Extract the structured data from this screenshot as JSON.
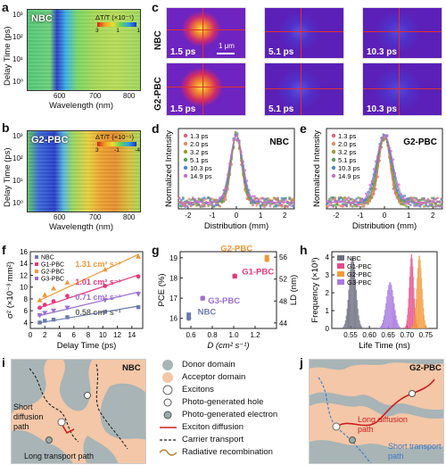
{
  "panels": {
    "a": {
      "letter": "a",
      "sample": "NBC",
      "ylabel": "Delay Time (ps)",
      "xlabel": "Wavelength (nm)",
      "cbar_label": "ΔT/T (×10⁻⁵)",
      "cbar_ticks": [
        "3",
        "1",
        "1"
      ],
      "yticks": [
        "10³",
        "10²",
        "10¹",
        "10⁰"
      ],
      "xticks": [
        "600",
        "700",
        "800"
      ]
    },
    "b": {
      "letter": "b",
      "sample": "G2-PBC",
      "ylabel": "Delay Time (ps)",
      "xlabel": "Wavelength (nm)",
      "cbar_label": "ΔT/T (×10⁻⁵)",
      "cbar_ticks": [
        "3",
        "-1",
        "-4"
      ],
      "yticks": [
        "10³",
        "10²",
        "10¹",
        "10⁰"
      ],
      "xticks": [
        "600",
        "700",
        "800"
      ]
    },
    "c": {
      "letter": "c",
      "rows": [
        "NBC",
        "G2-PBC"
      ],
      "times": [
        "1.5 ps",
        "5.1 ps",
        "10.3 ps"
      ],
      "scale": "1 μm"
    },
    "d": {
      "letter": "d",
      "sample": "NBC"
    },
    "e": {
      "letter": "e",
      "sample": "G2-PBC"
    },
    "f": {
      "letter": "f"
    },
    "g": {
      "letter": "g"
    },
    "h": {
      "letter": "h"
    },
    "i": {
      "letter": "i",
      "sample": "NBC",
      "labels": [
        "Short diffusion path",
        "Long transport path"
      ]
    },
    "j": {
      "letter": "j",
      "sample": "G2-PBC",
      "labels": [
        "Long diffusion path",
        "Short transport path"
      ]
    }
  },
  "legend": {
    "items": [
      "Donor domain",
      "Acceptor domain",
      "Excitons",
      "Photo-generated hole",
      "Photo-generated electron",
      "Exciton diffusion",
      "Carrier transport",
      "Radiative recombination"
    ]
  },
  "chart_data": [
    {
      "panel": "d",
      "type": "scatter",
      "title": "NBC",
      "xlabel": "Distribution (mm)",
      "ylabel": "Normalized Intensity",
      "xlim": [
        -2.4,
        2.4
      ],
      "xticks": [
        "-2",
        "-1",
        "0",
        "1",
        "2"
      ],
      "series": [
        {
          "name": "1.3 ps",
          "color": "#e0607a"
        },
        {
          "name": "2.0 ps",
          "color": "#e09060"
        },
        {
          "name": "3.2 ps",
          "color": "#9a9a30"
        },
        {
          "name": "5.1 ps",
          "color": "#5aa05a"
        },
        {
          "name": "10.3 ps",
          "color": "#4a8ad0"
        },
        {
          "name": "14.9 ps",
          "color": "#c870c8"
        }
      ],
      "gaussian_sigma": [
        0.2,
        0.21,
        0.22,
        0.23,
        0.25,
        0.27
      ]
    },
    {
      "panel": "e",
      "type": "scatter",
      "title": "G2-PBC",
      "xlabel": "Distribution (mm)",
      "ylabel": "Normalized Intensity",
      "xlim": [
        -2.4,
        2.4
      ],
      "xticks": [
        "-2",
        "-1",
        "0",
        "1",
        "2"
      ],
      "series": [
        {
          "name": "1.3 ps",
          "color": "#e0607a"
        },
        {
          "name": "2.0 ps",
          "color": "#e09060"
        },
        {
          "name": "3.2 ps",
          "color": "#9a9a30"
        },
        {
          "name": "5.1 ps",
          "color": "#5aa05a"
        },
        {
          "name": "10.3 ps",
          "color": "#4a8ad0"
        },
        {
          "name": "14.9 ps",
          "color": "#c870c8"
        }
      ],
      "gaussian_sigma": [
        0.22,
        0.24,
        0.26,
        0.28,
        0.31,
        0.34
      ]
    },
    {
      "panel": "f",
      "type": "scatter",
      "xlabel": "Delay Time (ps)",
      "ylabel": "σ² (×10⁻³ mm²)",
      "xlim": [
        0,
        15.5
      ],
      "ylim": [
        3,
        16
      ],
      "xticks": [
        0,
        2,
        4,
        6,
        8,
        10,
        12,
        14
      ],
      "yticks": [
        4,
        6,
        8,
        10,
        12,
        14,
        16
      ],
      "series": [
        {
          "name": "NBC",
          "color": "#6b7bb0",
          "marker": "square",
          "x": [
            1.3,
            2.0,
            3.2,
            5.1,
            10.3,
            14.9
          ],
          "y": [
            4.0,
            4.3,
            4.5,
            4.9,
            5.8,
            6.6
          ],
          "fit": [
            [
              1,
              3.9
            ],
            [
              15,
              6.8
            ]
          ],
          "label": "0.58 cm² s⁻¹",
          "label_color": "#666666"
        },
        {
          "name": "G1-PBC",
          "color": "#e63a7c",
          "marker": "circle",
          "x": [
            1.3,
            2.0,
            3.2,
            5.1,
            10.3,
            14.9
          ],
          "y": [
            6.5,
            7.0,
            7.6,
            8.5,
            10.2,
            11.8
          ],
          "fit": [
            [
              1,
              6.4
            ],
            [
              15,
              12.1
            ]
          ],
          "label": "1.01 cm² s⁻¹",
          "label_color": "#e63a7c"
        },
        {
          "name": "G2-PBC",
          "color": "#f0983a",
          "marker": "triangle",
          "x": [
            1.3,
            2.0,
            3.2,
            5.1,
            10.3,
            14.9
          ],
          "y": [
            7.8,
            8.7,
            9.8,
            10.8,
            13.0,
            15.2
          ],
          "fit": [
            [
              1,
              7.6
            ],
            [
              15,
              15.6
            ]
          ],
          "label": "1.31 cm² s⁻¹",
          "label_color": "#f0983a"
        },
        {
          "name": "G3-PBC",
          "color": "#9b6fd4",
          "marker": "tri-down",
          "x": [
            1.3,
            2.0,
            3.2,
            5.1,
            10.3,
            14.9
          ],
          "y": [
            5.2,
            5.6,
            6.0,
            6.5,
            7.8,
            8.8
          ],
          "fit": [
            [
              1,
              5.1
            ],
            [
              15,
              9.2
            ]
          ],
          "label": "0.71 cm² s⁻¹",
          "label_color": "#9b6fd4"
        }
      ]
    },
    {
      "panel": "g",
      "type": "scatter",
      "xlabel": "D (cm² s⁻¹)",
      "ylabel": "PCE (%)",
      "y2label": "LD (nm)",
      "xlim": [
        0.5,
        1.4
      ],
      "ylim": [
        15.5,
        19.3
      ],
      "xticks": [
        0.6,
        0.8,
        1.0,
        1.2
      ],
      "yticks": [
        16,
        17,
        18,
        19
      ],
      "y2lim": [
        43,
        57
      ],
      "y2ticks": [
        44,
        48,
        52,
        56
      ],
      "points": [
        {
          "name": "NBC",
          "x": 0.58,
          "pce": 16.0,
          "ld": 45.5,
          "color": "#6b7bb0"
        },
        {
          "name": "G3-PBC",
          "x": 0.71,
          "pce": 17.0,
          "ld": 48.5,
          "color": "#9b6fd4"
        },
        {
          "name": "G1-PBC",
          "x": 1.01,
          "pce": 18.1,
          "ld": 52.5,
          "color": "#e63a7c"
        },
        {
          "name": "G2-PBC",
          "x": 1.31,
          "pce": 18.9,
          "ld": 56.0,
          "color": "#f0983a"
        }
      ]
    },
    {
      "panel": "h",
      "type": "bar",
      "xlabel": "Life Time (ns)",
      "ylabel": "Frequency (×10³)",
      "xlim": [
        0.5,
        0.78
      ],
      "ylim": [
        0,
        4.3
      ],
      "xticks": [
        "0.55",
        "0.60",
        "0.65",
        "0.70",
        "0.75"
      ],
      "yticks": [
        "0",
        "1",
        "2",
        "3",
        "4"
      ],
      "series": [
        {
          "name": "NBC",
          "color": "#6e6e80",
          "center": 0.555,
          "width": 0.009,
          "peak": 4.0
        },
        {
          "name": "G1-PBC",
          "color": "#e74a8a",
          "center": 0.712,
          "width": 0.006,
          "peak": 4.2
        },
        {
          "name": "G2-PBC",
          "color": "#f29a3a",
          "center": 0.733,
          "width": 0.007,
          "peak": 4.1
        },
        {
          "name": "G3-PBC",
          "color": "#a77ae0",
          "center": 0.655,
          "width": 0.01,
          "peak": 2.6
        }
      ]
    }
  ]
}
